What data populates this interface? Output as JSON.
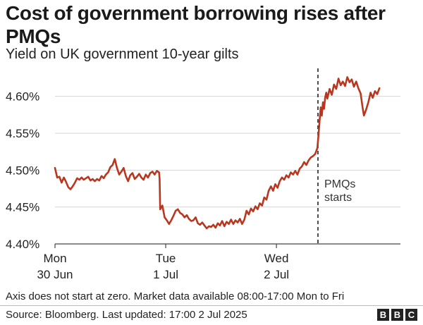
{
  "header": {
    "title": "Cost of government borrowing rises after PMQs",
    "subtitle": "Yield on UK government 10-year gilts"
  },
  "footer": {
    "note": "Axis does not start at zero. Market data available 08:00-17:00 Mon to Fri",
    "source": "Source: Bloomberg. Last updated: 17:00 2 Jul 2025",
    "logo_letters": [
      "B",
      "B",
      "C"
    ]
  },
  "chart_data": {
    "type": "line",
    "title": "Cost of government borrowing rises after PMQs",
    "subtitle": "Yield on UK government 10-year gilts",
    "xlabel": "",
    "ylabel": "",
    "x_unit": "trading day (Mon 30 Jun, Tue 1 Jul, Wed 2 Jul)",
    "xlim": [
      0,
      3.12
    ],
    "ylim": [
      4.4,
      4.635
    ],
    "y_ticks": [
      4.4,
      4.45,
      4.5,
      4.55,
      4.6
    ],
    "y_tick_labels": [
      "4.40%",
      "4.45%",
      "4.50%",
      "4.55%",
      "4.60%"
    ],
    "x_ticks": [
      {
        "x": 0,
        "line1": "Mon",
        "line2": "30 Jun"
      },
      {
        "x": 1,
        "line1": "Tue",
        "line2": "1 Jul"
      },
      {
        "x": 2,
        "line1": "Wed",
        "line2": "2 Jul"
      }
    ],
    "grid": "horizontal",
    "line_color": "#b9361f",
    "series": [
      {
        "values": [
          [
            0.0,
            4.503
          ],
          [
            0.02,
            4.49
          ],
          [
            0.04,
            4.491
          ],
          [
            0.06,
            4.483
          ],
          [
            0.08,
            4.49
          ],
          [
            0.1,
            4.484
          ],
          [
            0.12,
            4.477
          ],
          [
            0.14,
            4.474
          ],
          [
            0.16,
            4.478
          ],
          [
            0.18,
            4.483
          ],
          [
            0.2,
            4.489
          ],
          [
            0.22,
            4.487
          ],
          [
            0.24,
            4.49
          ],
          [
            0.26,
            4.487
          ],
          [
            0.28,
            4.489
          ],
          [
            0.3,
            4.491
          ],
          [
            0.32,
            4.486
          ],
          [
            0.34,
            4.488
          ],
          [
            0.36,
            4.485
          ],
          [
            0.38,
            4.488
          ],
          [
            0.4,
            4.486
          ],
          [
            0.42,
            4.492
          ],
          [
            0.44,
            4.489
          ],
          [
            0.46,
            4.494
          ],
          [
            0.48,
            4.497
          ],
          [
            0.5,
            4.504
          ],
          [
            0.52,
            4.507
          ],
          [
            0.54,
            4.515
          ],
          [
            0.56,
            4.503
          ],
          [
            0.58,
            4.494
          ],
          [
            0.6,
            4.498
          ],
          [
            0.62,
            4.503
          ],
          [
            0.64,
            4.492
          ],
          [
            0.66,
            4.485
          ],
          [
            0.68,
            4.493
          ],
          [
            0.7,
            4.496
          ],
          [
            0.72,
            4.488
          ],
          [
            0.74,
            4.491
          ],
          [
            0.76,
            4.495
          ],
          [
            0.78,
            4.49
          ],
          [
            0.8,
            4.487
          ],
          [
            0.82,
            4.494
          ],
          [
            0.84,
            4.49
          ],
          [
            0.86,
            4.496
          ],
          [
            0.88,
            4.498
          ],
          [
            0.9,
            4.494
          ],
          [
            0.92,
            4.499
          ],
          [
            0.94,
            4.497
          ],
          [
            0.945,
            4.488
          ],
          [
            0.95,
            4.447
          ],
          [
            0.97,
            4.452
          ],
          [
            0.99,
            4.436
          ],
          [
            1.01,
            4.432
          ],
          [
            1.03,
            4.427
          ],
          [
            1.05,
            4.432
          ],
          [
            1.07,
            4.438
          ],
          [
            1.09,
            4.445
          ],
          [
            1.11,
            4.447
          ],
          [
            1.13,
            4.442
          ],
          [
            1.15,
            4.44
          ],
          [
            1.17,
            4.436
          ],
          [
            1.19,
            4.439
          ],
          [
            1.21,
            4.434
          ],
          [
            1.23,
            4.431
          ],
          [
            1.25,
            4.432
          ],
          [
            1.27,
            4.436
          ],
          [
            1.29,
            4.428
          ],
          [
            1.31,
            4.426
          ],
          [
            1.33,
            4.429
          ],
          [
            1.35,
            4.425
          ],
          [
            1.37,
            4.421
          ],
          [
            1.39,
            4.424
          ],
          [
            1.41,
            4.423
          ],
          [
            1.43,
            4.426
          ],
          [
            1.45,
            4.422
          ],
          [
            1.47,
            4.428
          ],
          [
            1.49,
            4.425
          ],
          [
            1.51,
            4.431
          ],
          [
            1.53,
            4.424
          ],
          [
            1.55,
            4.43
          ],
          [
            1.57,
            4.427
          ],
          [
            1.59,
            4.433
          ],
          [
            1.61,
            4.427
          ],
          [
            1.63,
            4.432
          ],
          [
            1.65,
            4.429
          ],
          [
            1.67,
            4.434
          ],
          [
            1.69,
            4.427
          ],
          [
            1.71,
            4.433
          ],
          [
            1.73,
            4.445
          ],
          [
            1.75,
            4.44
          ],
          [
            1.77,
            4.448
          ],
          [
            1.79,
            4.444
          ],
          [
            1.81,
            4.451
          ],
          [
            1.83,
            4.447
          ],
          [
            1.85,
            4.455
          ],
          [
            1.87,
            4.452
          ],
          [
            1.89,
            4.463
          ],
          [
            1.91,
            4.46
          ],
          [
            1.93,
            4.472
          ],
          [
            1.95,
            4.478
          ],
          [
            1.97,
            4.472
          ],
          [
            1.99,
            4.481
          ],
          [
            2.01,
            4.476
          ],
          [
            2.03,
            4.485
          ],
          [
            2.05,
            4.49
          ],
          [
            2.07,
            4.487
          ],
          [
            2.09,
            4.493
          ],
          [
            2.11,
            4.49
          ],
          [
            2.13,
            4.497
          ],
          [
            2.15,
            4.494
          ],
          [
            2.17,
            4.499
          ],
          [
            2.19,
            4.494
          ],
          [
            2.21,
            4.502
          ],
          [
            2.23,
            4.505
          ],
          [
            2.25,
            4.511
          ],
          [
            2.27,
            4.507
          ],
          [
            2.29,
            4.513
          ],
          [
            2.31,
            4.517
          ],
          [
            2.33,
            4.519
          ],
          [
            2.35,
            4.522
          ],
          [
            2.37,
            4.53
          ],
          [
            2.38,
            4.548
          ],
          [
            2.39,
            4.568
          ],
          [
            2.4,
            4.585
          ],
          [
            2.41,
            4.574
          ],
          [
            2.42,
            4.592
          ],
          [
            2.43,
            4.583
          ],
          [
            2.44,
            4.598
          ],
          [
            2.45,
            4.605
          ],
          [
            2.46,
            4.597
          ],
          [
            2.48,
            4.61
          ],
          [
            2.5,
            4.602
          ],
          [
            2.52,
            4.616
          ],
          [
            2.54,
            4.61
          ],
          [
            2.56,
            4.624
          ],
          [
            2.58,
            4.615
          ],
          [
            2.6,
            4.62
          ],
          [
            2.62,
            4.614
          ],
          [
            2.64,
            4.626
          ],
          [
            2.66,
            4.619
          ],
          [
            2.68,
            4.623
          ],
          [
            2.7,
            4.613
          ],
          [
            2.72,
            4.62
          ],
          [
            2.74,
            4.611
          ],
          [
            2.76,
            4.604
          ],
          [
            2.78,
            4.583
          ],
          [
            2.79,
            4.574
          ],
          [
            2.81,
            4.582
          ],
          [
            2.83,
            4.592
          ],
          [
            2.85,
            4.605
          ],
          [
            2.87,
            4.598
          ],
          [
            2.89,
            4.607
          ],
          [
            2.91,
            4.603
          ],
          [
            2.93,
            4.611
          ]
        ]
      }
    ],
    "annotations": [
      {
        "x": 2.375,
        "text_line1": "PMQs",
        "text_line2": "starts",
        "style": "dashed vertical line"
      }
    ]
  }
}
